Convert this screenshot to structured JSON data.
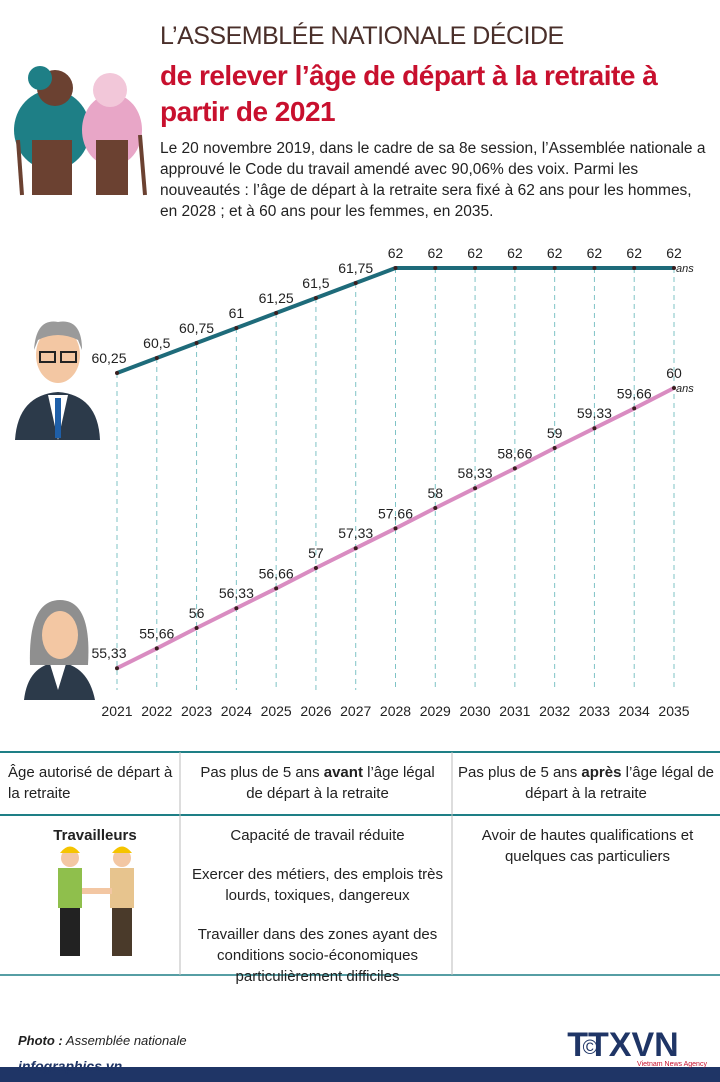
{
  "header": {
    "kicker": "L’ASSEMBLÉE NATIONALE DÉCIDE",
    "title_line1": "de relever l’âge de départ à la retraite à",
    "title_line2": "partir de 2021",
    "intro": "Le 20 novembre 2019, dans le cadre de sa 8e session, l’Assemblée nationale a approuvé le Code du travail amendé avec 90,06% des voix. Parmi les nouveautés : l’âge de départ à la retraite sera fixé à 62 ans pour les hommes, en 2028 ; et à 60 ans pour les femmes, en 2035."
  },
  "chart_data": {
    "type": "line",
    "unit_label": "ans",
    "categories": [
      "2021",
      "2022",
      "2023",
      "2024",
      "2025",
      "2026",
      "2027",
      "2028",
      "2029",
      "2030",
      "2031",
      "2032",
      "2033",
      "2034",
      "2035"
    ],
    "ylim": [
      55,
      62.5
    ],
    "series": [
      {
        "color": "#1e6b7a",
        "values": [
          60.25,
          60.5,
          60.75,
          61,
          61.25,
          61.5,
          61.75,
          62,
          62,
          62,
          62,
          62,
          62,
          62,
          62
        ],
        "value_labels": [
          "60,25",
          "60,5",
          "60,75",
          "61",
          "61,25",
          "61,5",
          "61,75",
          "62",
          "62",
          "62",
          "62",
          "62",
          "62",
          "62",
          "62"
        ]
      },
      {
        "color": "#d98cc1",
        "values": [
          55.33,
          55.66,
          56,
          56.33,
          56.66,
          57,
          57.33,
          57.66,
          58,
          58.33,
          58.66,
          59,
          59.33,
          59.66,
          60
        ],
        "value_labels": [
          "55,33",
          "55,66",
          "56",
          "56,33",
          "56,66",
          "57",
          "57,33",
          "57,66",
          "58",
          "58,33",
          "58,66",
          "59",
          "59,33",
          "59,66",
          "60"
        ]
      }
    ]
  },
  "table": {
    "header": [
      [
        "Âge autorisé de départ à la retraite"
      ],
      [
        "Pas plus de 5 ans ",
        "avant",
        " l’âge légal de départ à la retraite"
      ],
      [
        "Pas plus de 5 ans ",
        "après",
        " l’âge légal de départ à la retraite"
      ]
    ],
    "row_label": "Travailleurs",
    "col2": [
      "Capacité de travail réduite",
      "Exercer des métiers, des emplois très lourds, toxiques, dangereux",
      "Travailler dans des zones ayant des conditions socio-économiques particulièrement difficiles"
    ],
    "col3": [
      "Avoir de hautes qualifications et quelques cas particuliers"
    ]
  },
  "footer": {
    "photo_label": "Photo :",
    "photo_source": " Assemblée nationale",
    "site": "infographics.vn",
    "copyright": "©",
    "logo": "TTXVN",
    "agency": "Vietnam News Agency"
  }
}
